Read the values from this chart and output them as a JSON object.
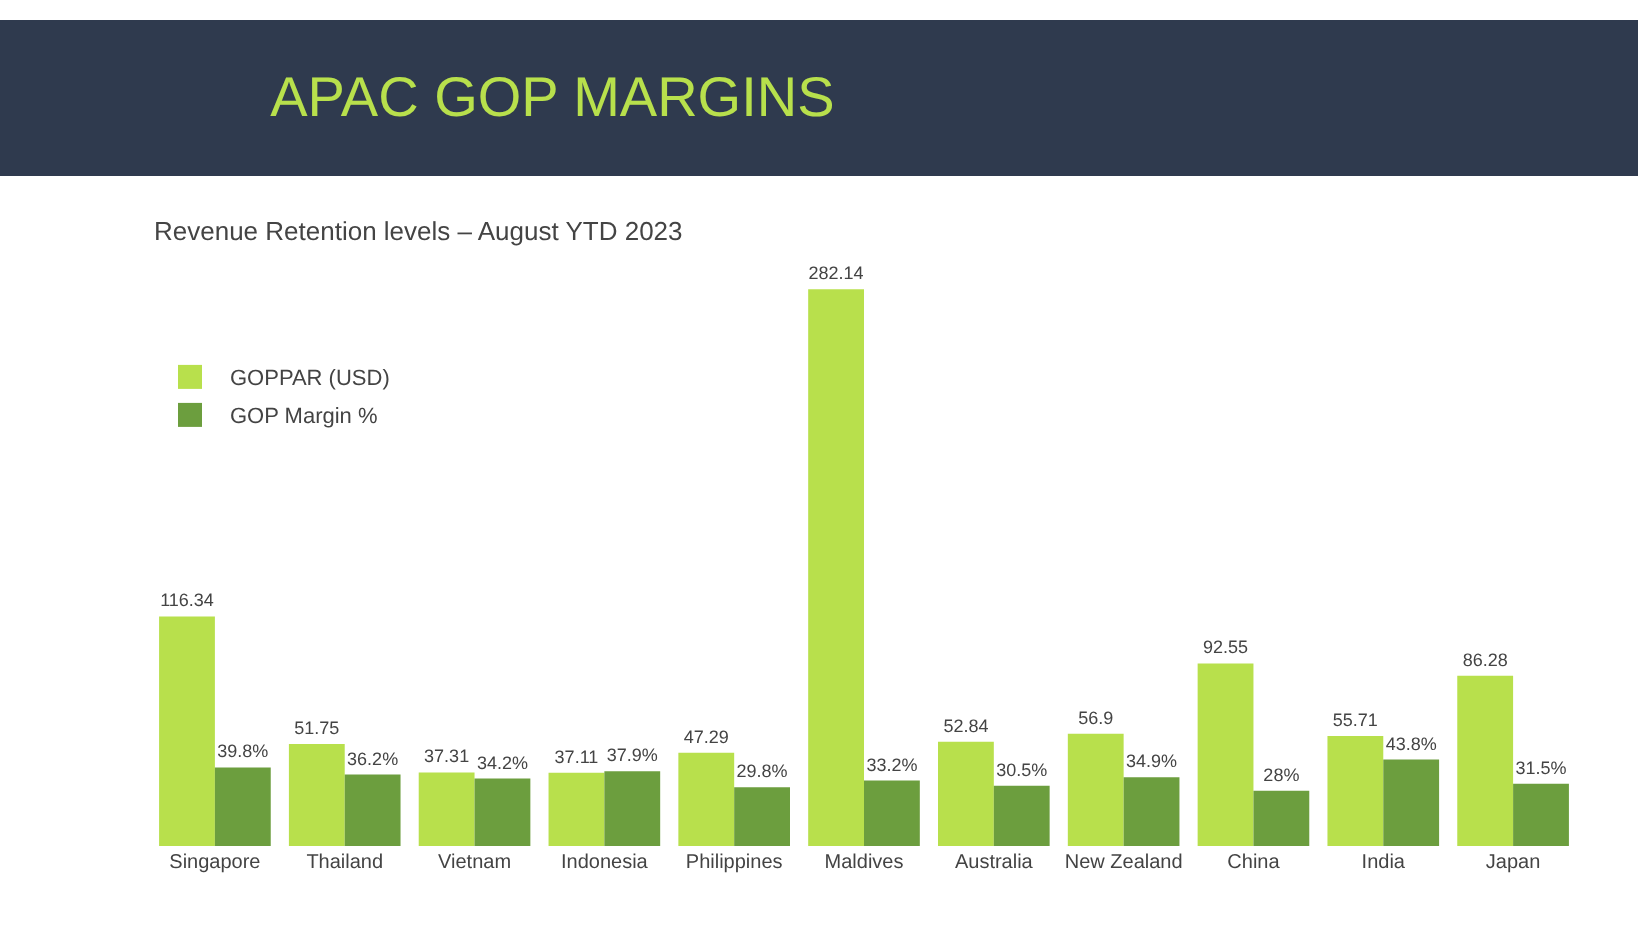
{
  "chart_data": {
    "type": "bar",
    "title": "APAC GOP MARGINS",
    "subtitle": "Revenue Retention levels – August YTD 2023",
    "categories": [
      "Singapore",
      "Thailand",
      "Vietnam",
      "Indonesia",
      "Philippines",
      "Maldives",
      "Australia",
      "New Zealand",
      "China",
      "India",
      "Japan"
    ],
    "series": [
      {
        "name": "GOPPAR (USD)",
        "color": "#b8e04c",
        "values": [
          116.34,
          51.75,
          37.31,
          37.11,
          47.29,
          282.14,
          52.84,
          56.9,
          92.55,
          55.71,
          86.28
        ],
        "value_labels": [
          "116.34",
          "51.75",
          "37.31",
          "37.11",
          "47.29",
          "282.14",
          "52.84",
          "56.9",
          "92.55",
          "55.71",
          "86.28"
        ]
      },
      {
        "name": "GOP Margin %",
        "color": "#6c9e3e",
        "values": [
          39.8,
          36.2,
          34.2,
          37.9,
          29.8,
          33.2,
          30.5,
          34.9,
          28,
          43.8,
          31.5
        ],
        "value_labels": [
          "39.8%",
          "36.2%",
          "34.2%",
          "37.9%",
          "29.8%",
          "33.2%",
          "30.5%",
          "34.9%",
          "28%",
          "43.8%",
          "31.5%"
        ]
      }
    ],
    "legend": "top left"
  }
}
